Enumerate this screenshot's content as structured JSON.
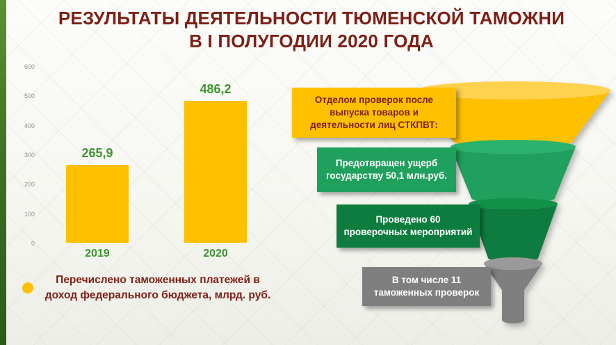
{
  "title": {
    "line1": "РЕЗУЛЬТАТЫ ДЕЯТЕЛЬНОСТИ ТЮМЕНСКОЙ ТАМОЖНИ",
    "line2": "В I ПОЛУГОДИИ 2020 ГОДА"
  },
  "colors": {
    "title": "#7D2016",
    "legend_text": "#7D2016",
    "value_label": "#3F9430",
    "axis_tick": "#8F8F8F",
    "stripe_green": "#3C7422"
  },
  "chart_data": {
    "type": "bar",
    "title": "",
    "categories": [
      "2019",
      "2020"
    ],
    "values": [
      265.9,
      486.2
    ],
    "value_labels": [
      "265,9",
      "486,2"
    ],
    "y_ticks_display": [
      "600",
      "500",
      "400",
      "300",
      "200",
      "100",
      "0"
    ],
    "ylim": [
      0,
      600
    ],
    "grid": false,
    "bar_color": "#FFC000",
    "label_color": "#3F9430",
    "legend_position": "bottom",
    "legend": "Перечислено таможенных платежей в доход федерального бюджета, млрд. руб."
  },
  "funnel": {
    "items": [
      {
        "label": "Отделом проверок после выпуска товаров и деятельности лиц СТКПВТ:",
        "bar_color": "#FFC000",
        "text_color": "#7D2016"
      },
      {
        "label": "Предотвращен ущерб государству 50,1 млн.руб.",
        "bar_color": "#1FA05C",
        "text_color": "#FFFFFF"
      },
      {
        "label": "Проведено 60 проверочных мероприятий",
        "bar_color": "#0E7C3E",
        "text_color": "#FFFFFF"
      },
      {
        "label": "В том числе 11 таможенных проверок",
        "bar_color": "#7F7F7F",
        "text_color": "#FFFFFF"
      }
    ]
  }
}
